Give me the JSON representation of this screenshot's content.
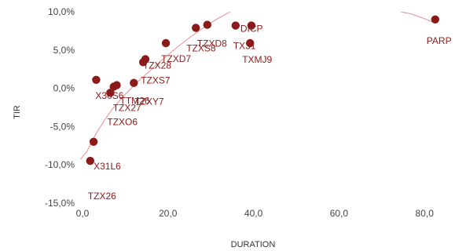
{
  "chart_data": {
    "type": "scatter",
    "title": "",
    "xlabel": "DURATION",
    "ylabel": "TIR",
    "xlim": [
      -2,
      85
    ],
    "ylim": [
      -15,
      10
    ],
    "x_ticks": [
      {
        "value": 0,
        "label": "0,0"
      },
      {
        "value": 20,
        "label": "20,0"
      },
      {
        "value": 40,
        "label": "40,0"
      },
      {
        "value": 60,
        "label": "60,0"
      },
      {
        "value": 80,
        "label": "80,0"
      }
    ],
    "y_ticks": [
      {
        "value": 10,
        "label": "10,0%"
      },
      {
        "value": 5,
        "label": "5,0%"
      },
      {
        "value": 0,
        "label": "0,0%"
      },
      {
        "value": -5,
        "label": "-5,0%"
      },
      {
        "value": -10,
        "label": "-10,0%"
      },
      {
        "value": -15,
        "label": "-15,0%"
      }
    ],
    "grid": false,
    "marker_color": "#8b1a1a",
    "trend_color": "#e8a0a0",
    "points": [
      {
        "label": "X31L6",
        "x": 2.6,
        "y": -7.0
      },
      {
        "label": "TZX26",
        "x": 1.8,
        "y": -9.5
      },
      {
        "label": "X30S6",
        "x": 3.2,
        "y": 1.1
      },
      {
        "label": "TZXO6",
        "x": 6.5,
        "y": -0.6
      },
      {
        "label": "TZX27",
        "x": 7.3,
        "y": 0.2
      },
      {
        "label": "TTM26",
        "x": 8.0,
        "y": 0.4
      },
      {
        "label": "TZXY7",
        "x": 12.0,
        "y": 0.7
      },
      {
        "label": "TZXS7",
        "x": 14.2,
        "y": 3.4
      },
      {
        "label": "TZX28",
        "x": 14.7,
        "y": 3.8
      },
      {
        "label": "TZXD7",
        "x": 19.5,
        "y": 5.9
      },
      {
        "label": "TZXS8",
        "x": 26.5,
        "y": 7.9
      },
      {
        "label": "TZXD8",
        "x": 29.2,
        "y": 8.3
      },
      {
        "label": "TX31",
        "x": 35.8,
        "y": 8.2
      },
      {
        "label": "DICP",
        "x": 39.5,
        "y": 8.2
      },
      {
        "label": "TXMJ9",
        "x": 39.2,
        "y": 5.9
      },
      {
        "label": "PARP",
        "x": 82.5,
        "y": 9.0
      }
    ],
    "trend": {
      "segments": [
        {
          "x": [
            -0.5,
            1,
            2,
            3,
            5,
            7,
            10,
            13,
            16,
            19,
            22,
            25,
            28,
            31,
            34.5
          ],
          "y": [
            -9.3,
            -8.3,
            -7.2,
            -6.1,
            -4.3,
            -2.7,
            -0.8,
            0.9,
            2.4,
            3.9,
            5.3,
            6.6,
            7.8,
            8.9,
            10.0
          ]
        },
        {
          "x": [
            74.5,
            77,
            80,
            82.5
          ],
          "y": [
            10.0,
            9.7,
            9.1,
            8.5
          ]
        }
      ]
    }
  }
}
